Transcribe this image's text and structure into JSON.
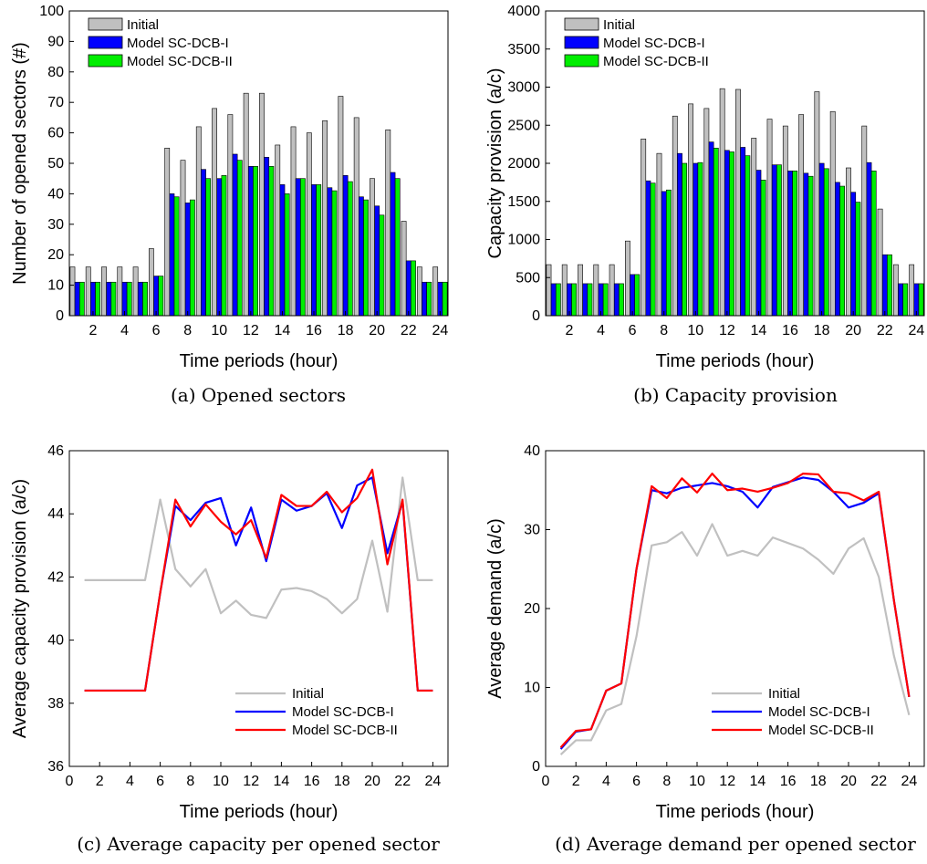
{
  "colors": {
    "initial_bar": "#c0c0c0",
    "model1_bar": "#0000ff",
    "model2_bar": "#00ee00",
    "initial_line": "#c0c0c0",
    "model1_line": "#0000ff",
    "model2_line": "#ff0000"
  },
  "chart_data": [
    {
      "id": "a",
      "type": "bar",
      "caption": "(a) Opened sectors",
      "xlabel": "Time periods (hour)",
      "ylabel": "Number of opened sectors (#)",
      "xlim": [
        0.5,
        24.5
      ],
      "ylim": [
        0,
        100
      ],
      "xticks": [
        2,
        4,
        6,
        8,
        10,
        12,
        14,
        16,
        18,
        20,
        22,
        24
      ],
      "yticks": [
        0,
        10,
        20,
        30,
        40,
        50,
        60,
        70,
        80,
        90,
        100
      ],
      "categories": [
        1,
        2,
        3,
        4,
        5,
        6,
        7,
        8,
        9,
        10,
        11,
        12,
        13,
        14,
        15,
        16,
        17,
        18,
        19,
        20,
        21,
        22,
        23,
        24
      ],
      "legend_position": "top-left",
      "series": [
        {
          "name": "Initial",
          "values": [
            16,
            16,
            16,
            16,
            16,
            22,
            55,
            51,
            62,
            68,
            66,
            73,
            73,
            56,
            62,
            60,
            64,
            72,
            65,
            45,
            61,
            31,
            16,
            16
          ]
        },
        {
          "name": "Model SC-DCB-I",
          "values": [
            11,
            11,
            11,
            11,
            11,
            13,
            40,
            37,
            48,
            45,
            53,
            49,
            52,
            43,
            45,
            43,
            42,
            46,
            39,
            36,
            47,
            18,
            11,
            11
          ]
        },
        {
          "name": "Model SC-DCB-II",
          "values": [
            11,
            11,
            11,
            11,
            11,
            13,
            39,
            38,
            45,
            46,
            51,
            49,
            49,
            40,
            45,
            43,
            41,
            44,
            38,
            33,
            45,
            18,
            11,
            11
          ]
        }
      ]
    },
    {
      "id": "b",
      "type": "bar",
      "caption": "(b) Capacity provision",
      "xlabel": "Time periods (hour)",
      "ylabel": "Capacity provision (a/c)",
      "xlim": [
        0.5,
        24.5
      ],
      "ylim": [
        0,
        4000
      ],
      "xticks": [
        2,
        4,
        6,
        8,
        10,
        12,
        14,
        16,
        18,
        20,
        22,
        24
      ],
      "yticks": [
        0,
        500,
        1000,
        1500,
        2000,
        2500,
        3000,
        3500,
        4000
      ],
      "categories": [
        1,
        2,
        3,
        4,
        5,
        6,
        7,
        8,
        9,
        10,
        11,
        12,
        13,
        14,
        15,
        16,
        17,
        18,
        19,
        20,
        21,
        22,
        23,
        24
      ],
      "legend_position": "top-left",
      "series": [
        {
          "name": "Initial",
          "values": [
            670,
            670,
            670,
            670,
            670,
            980,
            2320,
            2130,
            2620,
            2780,
            2720,
            2980,
            2970,
            2330,
            2580,
            2490,
            2640,
            2940,
            2680,
            1940,
            2490,
            1400,
            670,
            670
          ]
        },
        {
          "name": "Model SC-DCB-I",
          "values": [
            420,
            420,
            420,
            420,
            420,
            540,
            1770,
            1630,
            2130,
            2000,
            2280,
            2170,
            2210,
            1910,
            1980,
            1900,
            1870,
            2000,
            1750,
            1620,
            2010,
            800,
            420,
            420
          ]
        },
        {
          "name": "Model SC-DCB-II",
          "values": [
            420,
            420,
            420,
            420,
            420,
            540,
            1740,
            1650,
            2000,
            2010,
            2200,
            2150,
            2100,
            1780,
            1980,
            1900,
            1830,
            1930,
            1700,
            1490,
            1900,
            800,
            420,
            420
          ]
        }
      ]
    },
    {
      "id": "c",
      "type": "line",
      "caption": "(c) Average capacity per opened sector",
      "xlabel": "Time periods (hour)",
      "ylabel": "Average capacity provision (a/c)",
      "xlim": [
        0,
        25
      ],
      "ylim": [
        36,
        46
      ],
      "xticks": [
        0,
        2,
        4,
        6,
        8,
        10,
        12,
        14,
        16,
        18,
        20,
        22,
        24
      ],
      "yticks": [
        36,
        38,
        40,
        42,
        44,
        46
      ],
      "x": [
        1,
        2,
        3,
        4,
        5,
        6,
        7,
        8,
        9,
        10,
        11,
        12,
        13,
        14,
        15,
        16,
        17,
        18,
        19,
        20,
        21,
        22,
        23,
        24
      ],
      "legend_position": "bottom-right",
      "series": [
        {
          "name": "Initial",
          "values": [
            41.9,
            41.9,
            41.9,
            41.9,
            41.9,
            44.45,
            42.25,
            41.7,
            42.25,
            40.85,
            41.25,
            40.8,
            40.7,
            41.6,
            41.65,
            41.55,
            41.3,
            40.85,
            41.3,
            43.15,
            40.9,
            45.15,
            41.9,
            41.9
          ]
        },
        {
          "name": "Model SC-DCB-I",
          "values": [
            38.4,
            38.4,
            38.4,
            38.4,
            38.4,
            41.5,
            44.25,
            43.8,
            44.35,
            44.5,
            43.0,
            44.2,
            42.5,
            44.45,
            44.1,
            44.25,
            44.65,
            43.55,
            44.9,
            45.15,
            42.75,
            44.4,
            38.4,
            38.4
          ]
        },
        {
          "name": "Model SC-DCB-II",
          "values": [
            38.4,
            38.4,
            38.4,
            38.4,
            38.4,
            41.5,
            44.45,
            43.6,
            44.3,
            43.75,
            43.35,
            43.8,
            42.6,
            44.6,
            44.25,
            44.25,
            44.7,
            44.05,
            44.5,
            45.4,
            42.4,
            44.45,
            38.4,
            38.4
          ]
        }
      ]
    },
    {
      "id": "d",
      "type": "line",
      "caption": "(d) Average demand per opened sector",
      "xlabel": "Time periods (hour)",
      "ylabel": "Average demand (a/c)",
      "xlim": [
        0,
        25
      ],
      "ylim": [
        0,
        40
      ],
      "xticks": [
        0,
        2,
        4,
        6,
        8,
        10,
        12,
        14,
        16,
        18,
        20,
        22,
        24
      ],
      "yticks": [
        0,
        10,
        20,
        30,
        40
      ],
      "x": [
        1,
        2,
        3,
        4,
        5,
        6,
        7,
        8,
        9,
        10,
        11,
        12,
        13,
        14,
        15,
        16,
        17,
        18,
        19,
        20,
        21,
        22,
        23,
        24
      ],
      "legend_position": "bottom-right",
      "series": [
        {
          "name": "Initial",
          "values": [
            1.5,
            3.3,
            3.3,
            7.1,
            7.9,
            16.5,
            28.0,
            28.4,
            29.7,
            26.7,
            30.7,
            26.7,
            27.3,
            26.7,
            29.0,
            28.3,
            27.6,
            26.2,
            24.4,
            27.6,
            28.9,
            24.0,
            14.0,
            6.5
          ]
        },
        {
          "name": "Model SC-DCB-I",
          "values": [
            2.2,
            4.4,
            4.7,
            9.6,
            10.5,
            25.0,
            35.0,
            34.6,
            35.3,
            35.6,
            35.9,
            35.5,
            34.8,
            32.8,
            35.4,
            36.0,
            36.6,
            36.3,
            34.8,
            32.8,
            33.4,
            34.6,
            21.0,
            8.8
          ]
        },
        {
          "name": "Model SC-DCB-II",
          "values": [
            2.4,
            4.5,
            4.7,
            9.6,
            10.5,
            25.0,
            35.5,
            34.0,
            36.5,
            34.7,
            37.1,
            35.0,
            35.2,
            34.8,
            35.3,
            35.9,
            37.1,
            37.0,
            34.8,
            34.6,
            33.7,
            34.8,
            21.0,
            8.8
          ]
        }
      ]
    }
  ]
}
